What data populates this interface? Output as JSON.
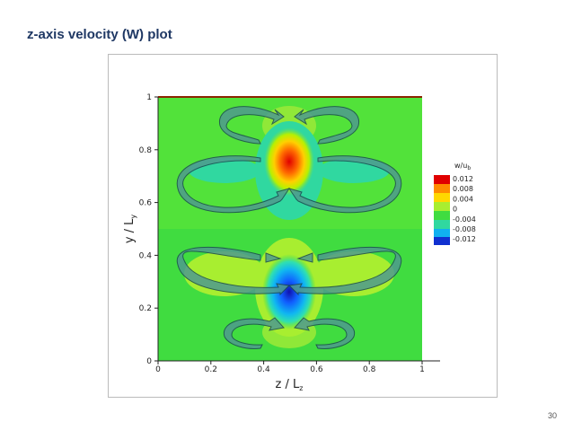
{
  "header": {
    "title": "z-axis velocity (W) plot"
  },
  "figure": {
    "x_label": {
      "main": "z / L",
      "sub": "z"
    },
    "y_label": {
      "main": "y / L",
      "sub": "y"
    },
    "xticks": [
      0,
      0.2,
      0.4,
      0.6,
      0.8,
      1
    ],
    "yticks": [
      0,
      0.2,
      0.4,
      0.6,
      0.8,
      1
    ],
    "colorbar": {
      "title": {
        "main": "w/u",
        "sub": "b"
      },
      "labels": [
        0.012,
        0.008,
        0.004,
        0,
        -0.004,
        -0.008,
        -0.012
      ]
    }
  },
  "page_number": 30
}
